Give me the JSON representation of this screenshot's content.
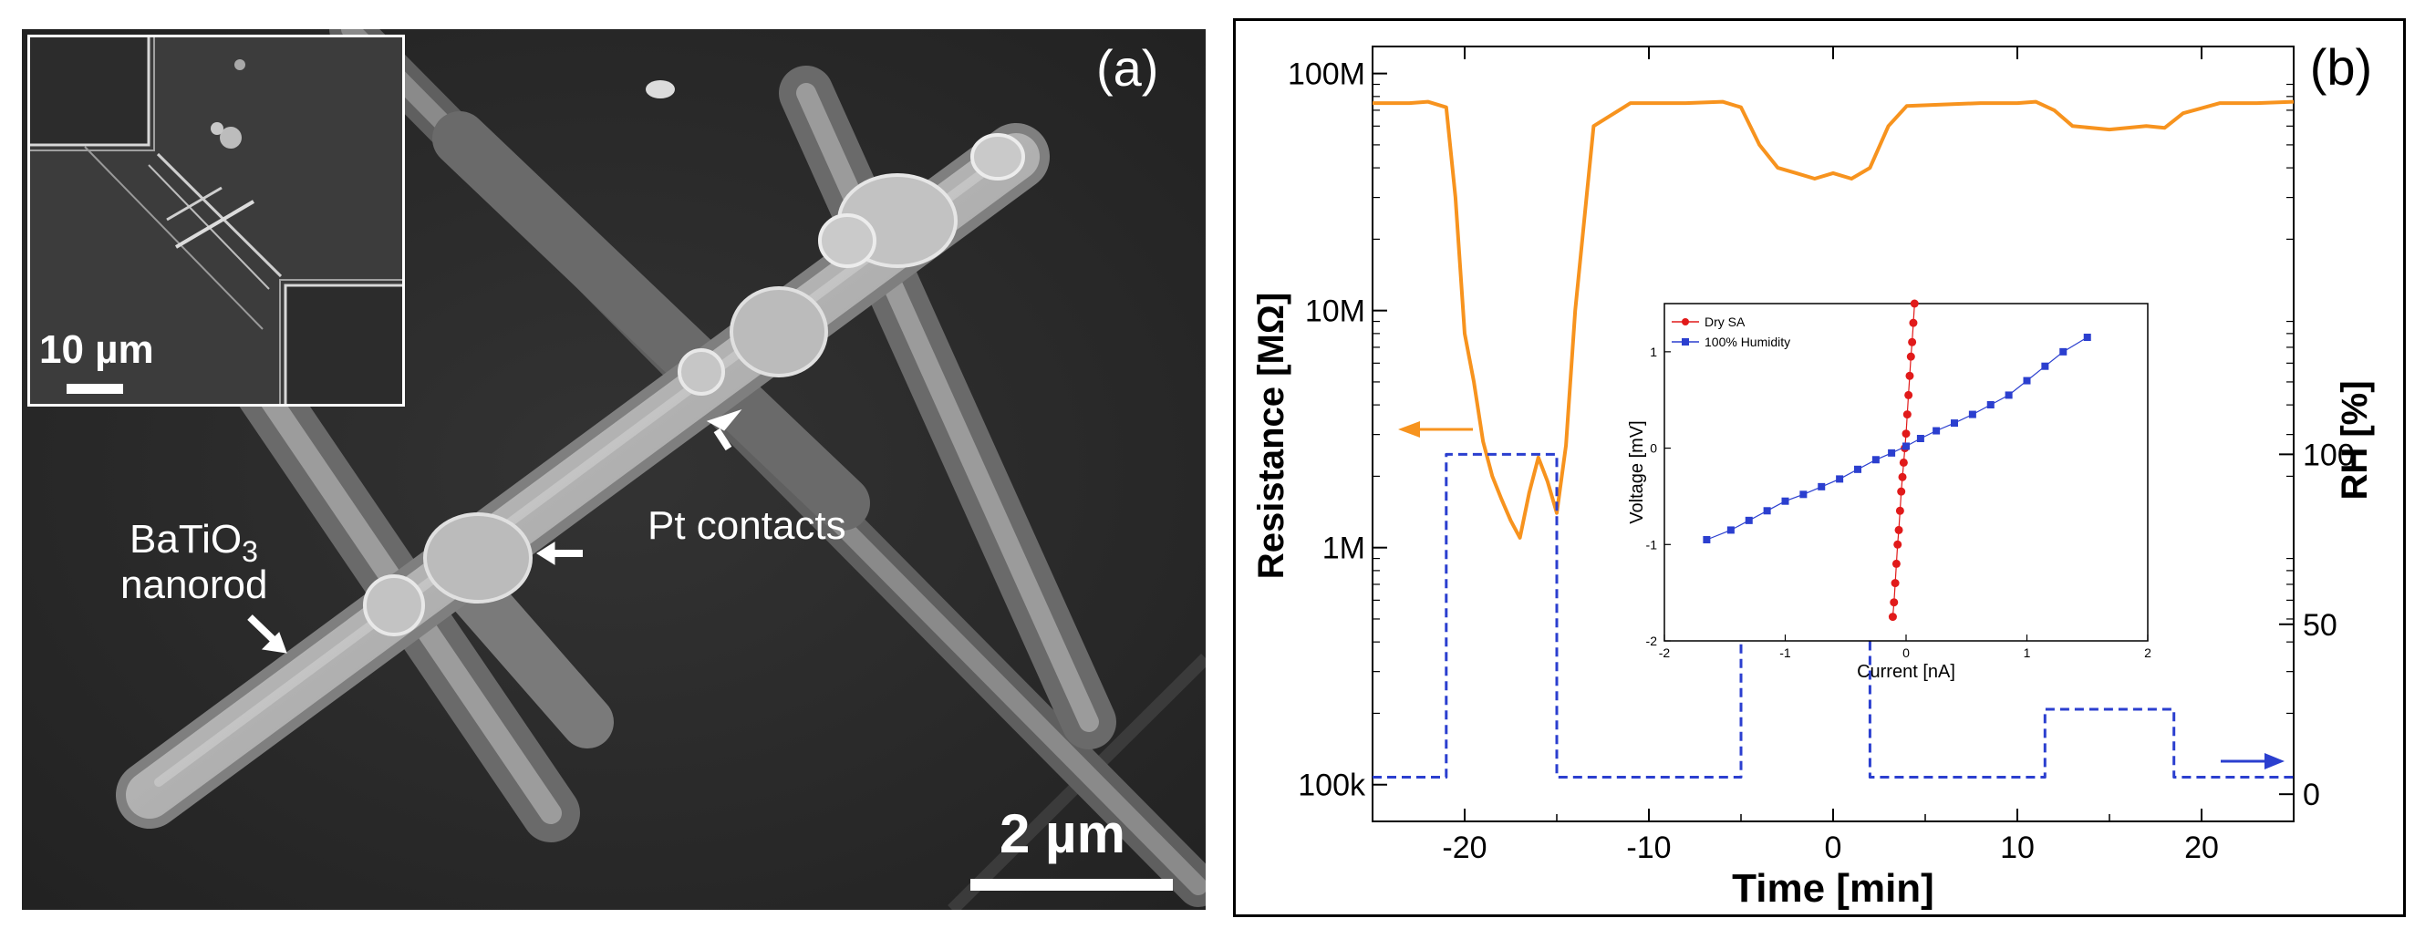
{
  "panel_a": {
    "label": "(a)",
    "annotations": {
      "nanorod_line1": "BaTiO",
      "nanorod_sub": "3",
      "nanorod_line2": "nanorod",
      "contacts": "Pt contacts"
    },
    "scale_bar": "2 µm",
    "inset": {
      "scale_bar": "10 µm"
    },
    "colors": {
      "background": "#2a2a2a",
      "rod": "#bdbdbd",
      "contact": "#9a9a9a"
    }
  },
  "panel_b": {
    "label": "(b)",
    "chart_data": [
      {
        "type": "line",
        "title": "",
        "xlabel": "Time [min]",
        "ylabel_left": "Resistance [MΩ]",
        "ylabel_right": "RH [%]",
        "xlim": [
          -25,
          25
        ],
        "xticks": [
          -20,
          -10,
          0,
          10,
          20
        ],
        "xtick_labels": [
          "-20",
          "-10",
          "0",
          "10",
          "20"
        ],
        "y_left_scale": "log",
        "y_left_ticks": [
          100000,
          1000000,
          10000000,
          100000000
        ],
        "y_left_tick_labels": [
          "100k",
          "1M",
          "10M",
          "100M"
        ],
        "y_right_ticks": [
          0,
          50,
          100
        ],
        "y_right_tick_labels": [
          "0",
          "50",
          "100"
        ],
        "series": [
          {
            "name": "Resistance",
            "axis": "left",
            "color": "#f7931e",
            "style": "solid",
            "x": [
              -25,
              -23,
              -22,
              -21,
              -20.5,
              -20,
              -19.5,
              -19,
              -18.5,
              -18,
              -17.5,
              -17,
              -16.5,
              -16,
              -15.5,
              -15,
              -14.5,
              -14,
              -13,
              -11,
              -8,
              -6,
              -5,
              -4,
              -3,
              -2,
              -1,
              0,
              1,
              2,
              3,
              4,
              6,
              8,
              10,
              11,
              12,
              13,
              15,
              17,
              18,
              19,
              21,
              23,
              25
            ],
            "y": [
              75000000,
              75000000,
              76000000,
              72000000,
              30000000,
              8000000,
              5000000,
              2800000,
              2000000,
              1600000,
              1300000,
              1100000,
              1700000,
              2400000,
              1900000,
              1400000,
              2700000,
              10000000,
              60000000,
              75000000,
              75000000,
              76000000,
              72000000,
              50000000,
              40000000,
              38000000,
              36000000,
              38000000,
              36000000,
              40000000,
              60000000,
              73000000,
              74000000,
              75000000,
              75000000,
              76000000,
              70000000,
              60000000,
              58000000,
              60000000,
              59000000,
              68000000,
              75000000,
              75000000,
              76000000
            ]
          },
          {
            "name": "RH",
            "axis": "right",
            "color": "#2b3fcf",
            "style": "dashed",
            "x": [
              -25,
              -21,
              -21,
              -15,
              -15,
              -5,
              -5,
              2,
              2,
              11.5,
              11.5,
              18.5,
              18.5,
              25
            ],
            "y": [
              5,
              5,
              100,
              100,
              5,
              5,
              50,
              50,
              5,
              5,
              25,
              25,
              5,
              5
            ]
          }
        ],
        "annotations": [
          "left arrow marks resistance axis",
          "right arrow marks RH axis"
        ]
      },
      {
        "type": "scatter",
        "title": "",
        "xlabel": "Current [nA]",
        "ylabel": "Voltage [mV]",
        "xlim": [
          -2,
          2
        ],
        "ylim": [
          -2,
          1.5
        ],
        "xticks": [
          -2,
          -1,
          0,
          1,
          2
        ],
        "yticks": [
          -2,
          -1,
          0,
          1
        ],
        "legend_position": "top-left",
        "series": [
          {
            "name": "Dry SA",
            "color": "#e11a1a",
            "x": [
              -0.11,
              -0.1,
              -0.09,
              -0.08,
              -0.07,
              -0.06,
              -0.05,
              -0.04,
              -0.03,
              -0.02,
              -0.01,
              0.0,
              0.01,
              0.02,
              0.03,
              0.04,
              0.05,
              0.06,
              0.07
            ],
            "y": [
              -1.75,
              -1.6,
              -1.4,
              -1.2,
              -1.0,
              -0.85,
              -0.65,
              -0.45,
              -0.3,
              -0.15,
              0.0,
              0.15,
              0.35,
              0.55,
              0.75,
              0.95,
              1.1,
              1.3,
              1.5
            ]
          },
          {
            "name": "100% Humidity",
            "color": "#2b3fcf",
            "x": [
              -1.65,
              -1.45,
              -1.3,
              -1.15,
              -1.0,
              -0.85,
              -0.7,
              -0.55,
              -0.4,
              -0.25,
              -0.12,
              0.0,
              0.12,
              0.25,
              0.4,
              0.55,
              0.7,
              0.85,
              1.0,
              1.15,
              1.3,
              1.5
            ],
            "y": [
              -0.95,
              -0.85,
              -0.75,
              -0.65,
              -0.55,
              -0.48,
              -0.4,
              -0.32,
              -0.22,
              -0.12,
              -0.05,
              0.02,
              0.1,
              0.18,
              0.26,
              0.35,
              0.45,
              0.55,
              0.7,
              0.85,
              1.0,
              1.15
            ]
          }
        ]
      }
    ]
  }
}
